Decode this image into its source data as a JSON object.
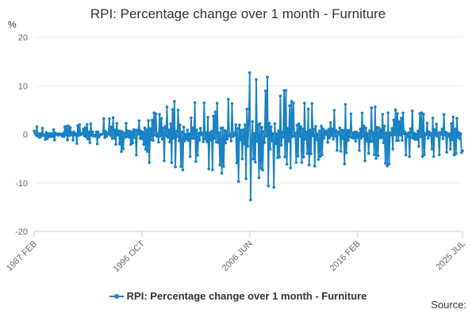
{
  "chart_data": {
    "type": "line",
    "title": "RPI: Percentage change over 1 month - Furniture",
    "y_unit": "%",
    "xlabel": "",
    "ylabel": "",
    "ylim": [
      -20,
      20
    ],
    "y_ticks": [
      20,
      10,
      0,
      -10,
      -20
    ],
    "x_range": [
      "1987 FEB",
      "2025 JUL"
    ],
    "x_tick_labels": [
      "1987 FEB",
      "1996 OCT",
      "2006 JUN",
      "2016 FEB",
      "2025 JUL"
    ],
    "x_tick_dates": [
      "1987-02",
      "1996-10",
      "2006-06",
      "2016-02",
      "2025-07"
    ],
    "grid": "horizontal",
    "legend_position": "bottom-center",
    "series": [
      {
        "name": "RPI: Percentage change over 1 month - Furniture",
        "color": "#1b82c4",
        "amplitude_envelope_approx": [
          {
            "x": "1987-02",
            "max_abs_pct": 1.5
          },
          {
            "x": "1990-01",
            "max_abs_pct": 2.0
          },
          {
            "x": "1993-01",
            "max_abs_pct": 3.0
          },
          {
            "x": "1996-01",
            "max_abs_pct": 4.5
          },
          {
            "x": "1999-01",
            "max_abs_pct": 8.0
          },
          {
            "x": "2002-01",
            "max_abs_pct": 7.0
          },
          {
            "x": "2005-01",
            "max_abs_pct": 9.0
          },
          {
            "x": "2006-06",
            "max_abs_pct": 12.5
          },
          {
            "x": "2008-01",
            "max_abs_pct": 13.0
          },
          {
            "x": "2010-01",
            "max_abs_pct": 9.0
          },
          {
            "x": "2013-01",
            "max_abs_pct": 6.0
          },
          {
            "x": "2016-02",
            "max_abs_pct": 6.5
          },
          {
            "x": "2019-01",
            "max_abs_pct": 6.5
          },
          {
            "x": "2022-01",
            "max_abs_pct": 5.0
          },
          {
            "x": "2025-07",
            "max_abs_pct": 4.0
          }
        ],
        "notable_points": [
          {
            "x": "1987-02",
            "y": 0.7
          },
          {
            "x": "2006-06",
            "y": 12.7
          },
          {
            "x": "2006-06",
            "y": -13.5
          },
          {
            "x": "2025-07",
            "y": -3.4
          }
        ]
      }
    ]
  },
  "legend": {
    "label": "RPI: Percentage change over 1 month - Furniture"
  },
  "footer": {
    "source_label": "Source:"
  }
}
